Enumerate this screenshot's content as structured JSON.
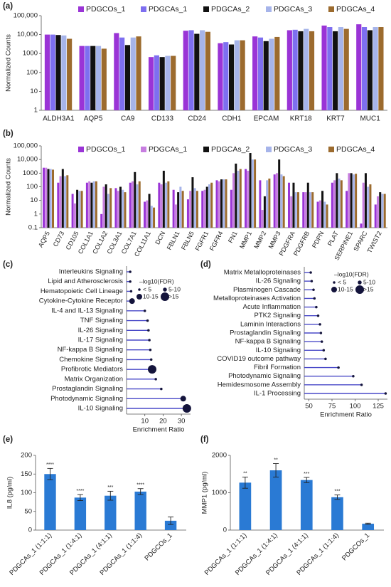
{
  "chart_data": [
    {
      "type": "bar",
      "panel": "(a)",
      "log": true,
      "ylabel": "Normalized Counts",
      "categories": [
        "ALDH3A1",
        "AQP5",
        "CA9",
        "CD133",
        "CD24",
        "CDH1",
        "EPCAM",
        "KRT18",
        "KRT7",
        "MUC1"
      ],
      "series": [
        {
          "name": "PDGCOs_1",
          "color": "#9a34d6",
          "values": [
            10000,
            2500,
            12000,
            650,
            16000,
            3500,
            8000,
            17000,
            30000,
            35000
          ]
        },
        {
          "name": "PDGCAs_1",
          "color": "#7e6ff0",
          "values": [
            10000,
            2500,
            7000,
            800,
            17000,
            4000,
            7000,
            18000,
            25000,
            25000
          ]
        },
        {
          "name": "PDGCAs_2",
          "color": "#111111",
          "values": [
            9500,
            2500,
            2800,
            650,
            11000,
            3000,
            4500,
            15000,
            15000,
            17000
          ]
        },
        {
          "name": "PDGCAs_3",
          "color": "#a6b4ea",
          "values": [
            9000,
            2500,
            7000,
            750,
            17000,
            5000,
            6000,
            20000,
            25000,
            25000
          ]
        },
        {
          "name": "PDGCAs_4",
          "color": "#9c6b2e",
          "values": [
            6000,
            1800,
            8000,
            750,
            14000,
            5000,
            7500,
            15000,
            20000,
            25000
          ]
        }
      ],
      "ylim": [
        1,
        100000
      ],
      "yticks": [
        1,
        10,
        100,
        1000,
        {
          "value": 10000,
          "label": "10,000"
        },
        {
          "value": 100000,
          "label": "100,000"
        }
      ]
    },
    {
      "type": "bar",
      "panel": "(b)",
      "log": true,
      "ylabel": "Normalized Counts",
      "categories": [
        "AQP5",
        "CD73",
        "CD105",
        "COL1A1",
        "COL1A2",
        "COL3A1",
        "COL7A1",
        "COL11A1",
        "DCN",
        "FBLN1",
        "FBLN5",
        "FGFR1",
        "FGFR4",
        "FN1",
        "MMP1",
        "MMP2",
        "MMP3",
        "PDGFRA",
        "PDGFRB",
        "PDPN",
        "PLAT",
        "SERPINE1",
        "SPARC",
        "TWIST2"
      ],
      "series": [
        {
          "name": "PDGCOs_1",
          "color": "#9a34d6",
          "values": [
            2500,
            200,
            30,
            200,
            1,
            80,
            200,
            8,
            200,
            60,
            12,
            50,
            300,
            60,
            2000,
            300,
            800,
            200,
            40,
            8,
            200,
            50,
            0.2,
            5
          ]
        },
        {
          "name": "PDGCAs_1",
          "color": "#c77ee0",
          "values": [
            2500,
            600,
            6,
            250,
            100,
            50,
            250,
            10,
            150,
            5,
            50,
            60,
            250,
            1000,
            1500,
            2,
            1000,
            20,
            40,
            10,
            300,
            1000,
            200,
            20
          ]
        },
        {
          "name": "PDGCAs_2",
          "color": "#111111",
          "values": [
            2000,
            2000,
            60,
            200,
            150,
            100,
            1200,
            30,
            1500,
            40,
            500,
            100,
            350,
            5000,
            30000,
            20,
            10000,
            200,
            200,
            50,
            1000,
            1000,
            1000,
            40
          ]
        },
        {
          "name": "PDGCAs_3",
          "color": "#a6b4ea",
          "values": [
            2000,
            600,
            50,
            250,
            30,
            60,
            150,
            4,
            200,
            100,
            80,
            150,
            350,
            1500,
            10000,
            300,
            800,
            40,
            40,
            8,
            400,
            800,
            100,
            30
          ]
        },
        {
          "name": "PDGCAs_4",
          "color": "#9c6b2e",
          "values": [
            1800,
            700,
            50,
            250,
            80,
            40,
            250,
            3,
            250,
            50,
            50,
            200,
            350,
            2000,
            10000,
            400,
            600,
            40,
            40,
            5,
            300,
            900,
            150,
            30
          ]
        }
      ],
      "ylim": [
        0.1,
        100000
      ],
      "yticks": [
        0.1,
        1,
        10,
        100,
        1000,
        {
          "value": 10000,
          "label": "10,000"
        },
        {
          "value": 100000,
          "label": "100,000"
        }
      ]
    },
    {
      "type": "lollipop",
      "panel": "(c)",
      "xlabel": "Enrichment Ratio",
      "color": "#4a4ac8",
      "marker_color": "#14143c",
      "categories": [
        "Interleukins Signaling",
        "Lipid and Atherosclerosis",
        "Hematopoietic Cell Lineage",
        "Cytokine-Cytokine Receptor",
        "IL-4 and IL-13 Signaling",
        "TNF Signaling",
        "IL-26 Signaling",
        "IL-17 Signaling",
        "NF-kappa B Signaling",
        "Chemokine Signaling",
        "Profibrotic Mediators",
        "Matrix Organization",
        "Prostaglandin Signaling",
        "Photodynamic Signaling",
        "IL-10 Signaling"
      ],
      "values": [
        2,
        2,
        2.5,
        3,
        10,
        11.5,
        12,
        12.5,
        13,
        13.5,
        14,
        16,
        19,
        31,
        33
      ],
      "sizes": [
        3,
        3,
        3,
        12,
        3,
        3,
        3,
        3,
        3,
        3,
        20,
        3,
        3,
        12,
        20
      ],
      "size_legend": {
        "title": "–log10(FDR)",
        "items": [
          {
            "value": 3,
            "label": "< 5"
          },
          {
            "value": 7,
            "label": "5-10"
          },
          {
            "value": 12,
            "label": "10-15"
          },
          {
            "value": 20,
            "label": ">15"
          }
        ]
      },
      "xlim": [
        0,
        35
      ],
      "xticks": [
        10,
        20,
        30
      ]
    },
    {
      "type": "lollipop",
      "panel": "(d)",
      "xlabel": "Enrichment Ratio",
      "color": "#4a4ac8",
      "marker_color": "#14143c",
      "categories": [
        "Matrix Metalloproteinases",
        "IL-26 Signaling",
        "Plasminogen Cascade",
        "Metalloproteinases Activation",
        "Acute Inflammation",
        "PTK2 Signaling",
        "Laminin Interactions",
        "Prostaglandin Signaling",
        "NF-kappa B Signaling",
        "IL-10 Signaling",
        "COVID19 outcome pathway",
        "Fibril Formation",
        "Photodynamic Signaling",
        "Hemidesmosome Assembly",
        "IL-1 Processing"
      ],
      "values": [
        52,
        53,
        55,
        56,
        58,
        60,
        62,
        63,
        64,
        66,
        68,
        82,
        98,
        107,
        133
      ],
      "sizes": [
        3,
        3,
        3,
        3,
        3,
        3,
        3,
        3,
        3,
        3,
        3,
        3,
        3,
        3,
        3
      ],
      "size_legend": {
        "title": "–log10(FDR)",
        "items": [
          {
            "value": 3,
            "label": "< 5"
          },
          {
            "value": 7,
            "label": "5-10"
          },
          {
            "value": 12,
            "label": "10-15"
          },
          {
            "value": 20,
            "label": ">15"
          }
        ]
      },
      "xlim": [
        45,
        135
      ],
      "xticks": [
        50,
        75,
        100,
        125
      ]
    },
    {
      "type": "bar",
      "panel": "(e)",
      "ylabel": "IL8 (pg/ml)",
      "color": "#2a7ad4",
      "categories": [
        "PDGCAs_1 (1:1:1)",
        "PDGCAs_1 (1:4:1)",
        "PDGCAs_1 (4:1:1)",
        "PDGCAs_1 (1:1:4)",
        "PDGCOs_1"
      ],
      "values": [
        150,
        87,
        92,
        103,
        25
      ],
      "errors": [
        15,
        8,
        12,
        8,
        10
      ],
      "significance": [
        "****",
        "****",
        "***",
        "****",
        null
      ],
      "ylim": [
        0,
        200
      ],
      "yticks": [
        0,
        50,
        100,
        150,
        200
      ]
    },
    {
      "type": "bar",
      "panel": "(f)",
      "ylabel": "MMP1 (pg/ml)",
      "color": "#2a7ad4",
      "categories": [
        "PDGCAs_1 (1:1:1)",
        "PDGCAs_1 (1:4:1)",
        "PDGCAs_1 (4:1:1)",
        "PDGCAs_1 (1:1:4)",
        "PDGCOs_1"
      ],
      "values": [
        1270,
        1600,
        1340,
        880,
        170
      ],
      "errors": [
        150,
        180,
        70,
        60,
        15
      ],
      "significance": [
        "**",
        "**",
        "***",
        "***",
        null
      ],
      "ylim": [
        0,
        2000
      ],
      "yticks": [
        0,
        1000,
        2000
      ]
    }
  ]
}
